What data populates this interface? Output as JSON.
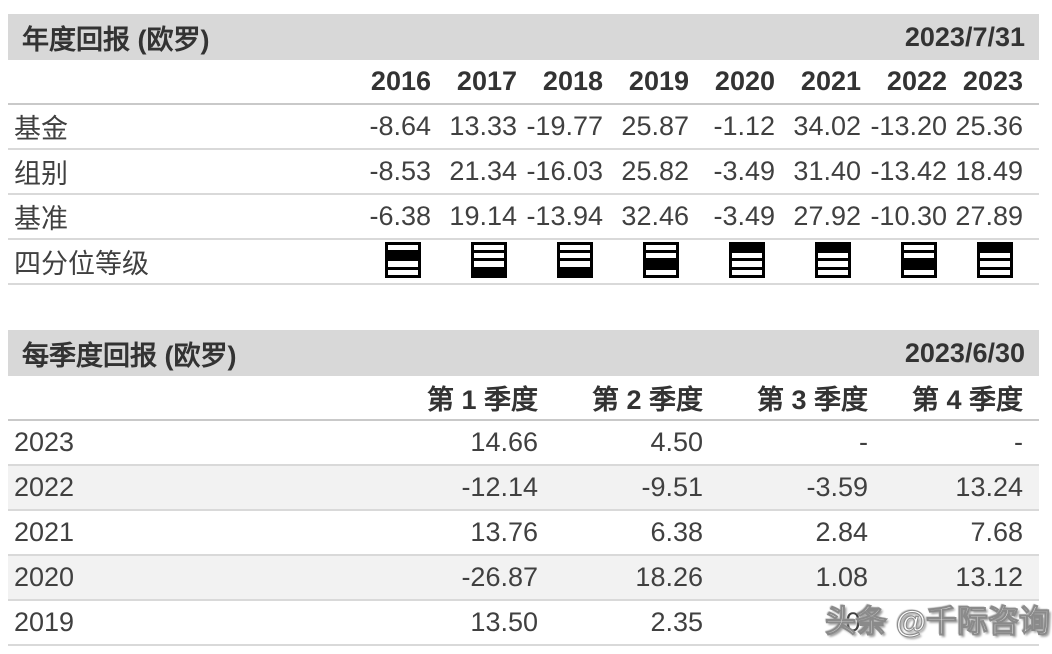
{
  "annual_returns": {
    "title": "年度回报 (欧罗)",
    "as_of_date": "2023/7/31",
    "years": [
      "2016",
      "2017",
      "2018",
      "2019",
      "2020",
      "2021",
      "2022",
      "2023"
    ],
    "rows": [
      {
        "label": "基金",
        "values": [
          "-8.64",
          "13.33",
          "-19.77",
          "25.87",
          "-1.12",
          "34.02",
          "-13.20",
          "25.36"
        ]
      },
      {
        "label": "组别",
        "values": [
          "-8.53",
          "21.34",
          "-16.03",
          "25.82",
          "-3.49",
          "31.40",
          "-13.42",
          "18.49"
        ]
      },
      {
        "label": "基准",
        "values": [
          "-6.38",
          "19.14",
          "-13.94",
          "32.46",
          "-3.49",
          "27.92",
          "-10.30",
          "27.89"
        ]
      }
    ],
    "quartile_row": {
      "label": "四分位等级",
      "quartiles": [
        2,
        4,
        4,
        3,
        1,
        1,
        3,
        1
      ]
    }
  },
  "quarterly_returns": {
    "title": "每季度回报 (欧罗)",
    "as_of_date": "2023/6/30",
    "columns": [
      "第 1 季度",
      "第 2 季度",
      "第 3 季度",
      "第 4 季度"
    ],
    "rows": [
      {
        "label": "2023",
        "values": [
          "14.66",
          "4.50",
          "-",
          "-"
        ]
      },
      {
        "label": "2022",
        "values": [
          "-12.14",
          "-9.51",
          "-3.59",
          "13.24"
        ]
      },
      {
        "label": "2021",
        "values": [
          "13.76",
          "6.38",
          "2.84",
          "7.68"
        ]
      },
      {
        "label": "2020",
        "values": [
          "-26.87",
          "18.26",
          "1.08",
          "13.12"
        ]
      },
      {
        "label": "2019",
        "values": [
          "13.50",
          "2.35",
          "0.",
          ""
        ]
      }
    ]
  },
  "watermark": {
    "text": "头条 @千际咨询"
  },
  "colors": {
    "section_band_bg": "#d8d8d8",
    "zebra_row_bg": "#f2f2f2",
    "divider": "#d9d9d9",
    "header_divider": "#c9c9c9",
    "text": "#404040",
    "heading_text": "#333333",
    "quartile_icon_fill": "#000000",
    "watermark_text": "#ffffff"
  }
}
